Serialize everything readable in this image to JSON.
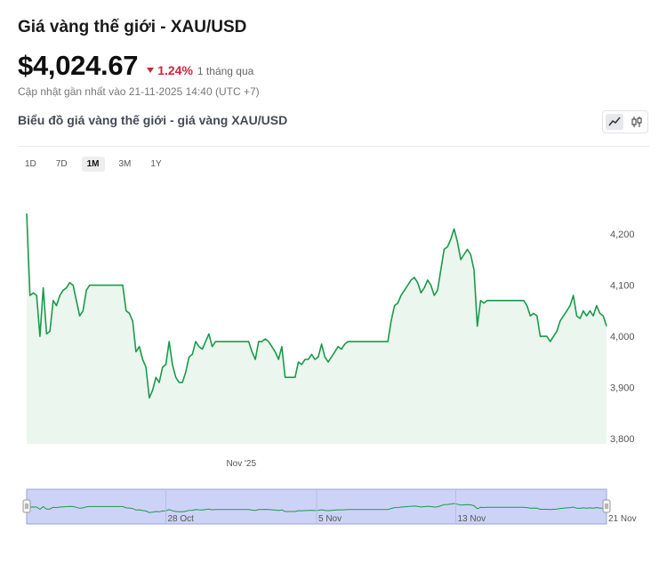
{
  "header": {
    "title": "Giá vàng thế giới - XAU/USD",
    "price": "$4,024.67",
    "change_pct": "1.24%",
    "change_period": "1 tháng qua",
    "updated": "Cập nhật gần nhất vào 21-11-2025 14:40 (UTC +7)",
    "subtitle": "Biểu đồ giá vàng thế giới - giá vàng XAU/USD"
  },
  "colors": {
    "line": "#1a9a4a",
    "area": "#eaf6ee",
    "negative": "#d0243c",
    "navigator_fill": "#cdd3f7"
  },
  "icons": {
    "line_mode": "line-chart-icon",
    "candle_mode": "candlestick-icon"
  },
  "range_buttons": [
    {
      "label": "1D",
      "active": false
    },
    {
      "label": "7D",
      "active": false
    },
    {
      "label": "1M",
      "active": true
    },
    {
      "label": "3M",
      "active": false
    },
    {
      "label": "1Y",
      "active": false
    }
  ],
  "chart_data": {
    "type": "area",
    "ylim": [
      3790,
      4240
    ],
    "yticks": [
      "3,800",
      "3,900",
      "4,000",
      "4,100",
      "4,200"
    ],
    "ytick_values": [
      3800,
      3900,
      4000,
      4100,
      4200
    ],
    "xticks": [
      {
        "label": "Nov '25",
        "t": 0.37
      }
    ],
    "grid": false,
    "values": [
      4240,
      4080,
      4085,
      4080,
      4000,
      4095,
      4005,
      4010,
      4070,
      4060,
      4080,
      4090,
      4095,
      4105,
      4100,
      4070,
      4040,
      4050,
      4090,
      4100,
      4100,
      4100,
      4100,
      4100,
      4100,
      4100,
      4100,
      4100,
      4100,
      4100,
      4050,
      4045,
      4030,
      3970,
      3980,
      3955,
      3940,
      3880,
      3895,
      3920,
      3910,
      3940,
      3945,
      3990,
      3945,
      3920,
      3910,
      3910,
      3930,
      3960,
      3965,
      3990,
      3980,
      3975,
      3990,
      4005,
      3980,
      3990,
      3990,
      3990,
      3990,
      3990,
      3990,
      3990,
      3990,
      3990,
      3990,
      3990,
      3970,
      3955,
      3990,
      3990,
      3995,
      3990,
      3980,
      3970,
      3955,
      3980,
      3920,
      3920,
      3920,
      3920,
      3950,
      3945,
      3955,
      3955,
      3965,
      3955,
      3960,
      3985,
      3960,
      3950,
      3960,
      3970,
      3980,
      3975,
      3985,
      3990,
      3990,
      3990,
      3990,
      3990,
      3990,
      3990,
      3990,
      3990,
      3990,
      3990,
      3990,
      3990,
      4030,
      4060,
      4065,
      4080,
      4090,
      4100,
      4110,
      4115,
      4105,
      4085,
      4095,
      4110,
      4100,
      4080,
      4090,
      4130,
      4170,
      4175,
      4190,
      4210,
      4185,
      4150,
      4160,
      4170,
      4160,
      4130,
      4020,
      4070,
      4065,
      4070,
      4070,
      4070,
      4070,
      4070,
      4070,
      4070,
      4070,
      4070,
      4070,
      4070,
      4070,
      4060,
      4040,
      4045,
      4040,
      4000,
      4000,
      4000,
      3990,
      4000,
      4010,
      4030,
      4040,
      4050,
      4060,
      4080,
      4040,
      4035,
      4050,
      4040,
      4050,
      4040,
      4060,
      4045,
      4040,
      4020
    ],
    "navigator_xticks": [
      {
        "label": "28 Oct",
        "t": 0.24
      },
      {
        "label": "5 Nov",
        "t": 0.5
      },
      {
        "label": "13 Nov",
        "t": 0.74
      },
      {
        "label": "21 Nov",
        "t": 1.0
      }
    ]
  }
}
